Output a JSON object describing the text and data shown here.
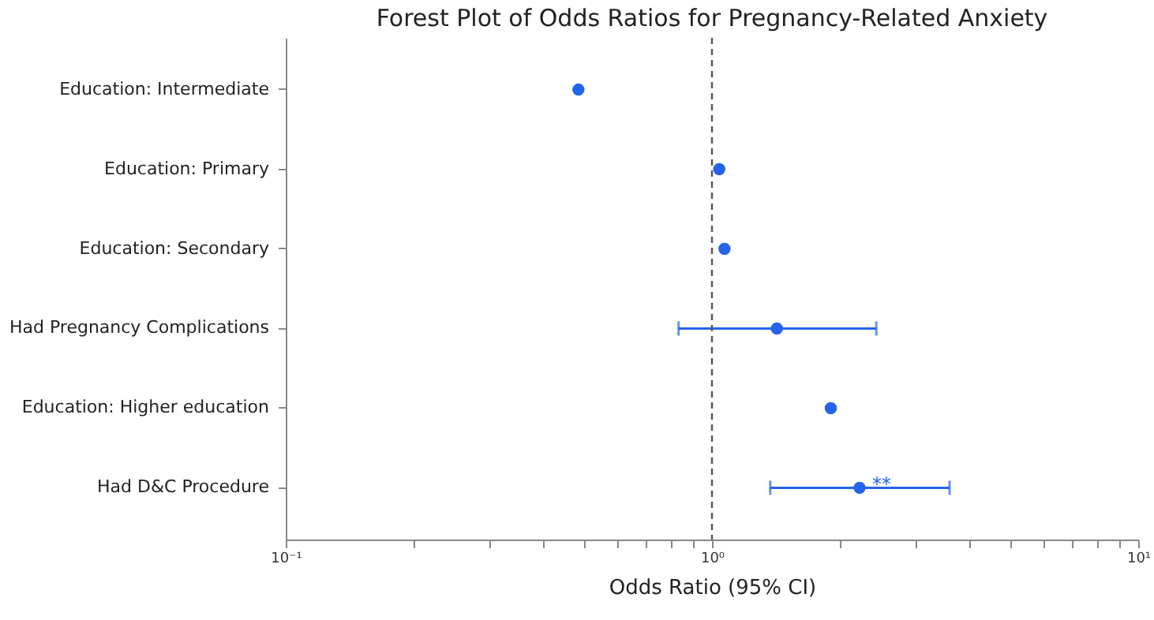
{
  "chart_data": {
    "type": "scatter",
    "orientation": "horizontal",
    "title": "Forest Plot of Odds Ratios for Pregnancy-Related Anxiety",
    "xlabel": "Odds Ratio (95% CI)",
    "categories": [
      "Education: Intermediate",
      "Education: Primary",
      "Education: Secondary",
      "Had Pregnancy Complications",
      "Education: Higher education",
      "Had D&C Procedure"
    ],
    "series": [
      {
        "color": "#2563eb",
        "values": [
          0.486,
          1.04,
          1.07,
          1.42,
          1.9,
          2.22
        ],
        "errors": [
          null,
          null,
          null,
          [
            0.835,
            2.43
          ],
          null,
          [
            1.37,
            3.61
          ]
        ]
      }
    ],
    "log": "x",
    "xlim": [
      0.1,
      10
    ],
    "xticks": [
      {
        "value": 0.1,
        "label": "10⁻¹"
      },
      {
        "value": 0.2,
        "label": null
      },
      {
        "value": 0.3,
        "label": null
      },
      {
        "value": 0.4,
        "label": null
      },
      {
        "value": 0.5,
        "label": null
      },
      {
        "value": 0.6,
        "label": null
      },
      {
        "value": 0.7,
        "label": null
      },
      {
        "value": 0.8,
        "label": null
      },
      {
        "value": 0.9,
        "label": null
      },
      {
        "value": 1,
        "label": "10⁰"
      },
      {
        "value": 2,
        "label": null
      },
      {
        "value": 3,
        "label": null
      },
      {
        "value": 4,
        "label": null
      },
      {
        "value": 5,
        "label": null
      },
      {
        "value": 6,
        "label": null
      },
      {
        "value": 7,
        "label": null
      },
      {
        "value": 8,
        "label": null
      },
      {
        "value": 9,
        "label": null
      },
      {
        "value": 10,
        "label": "10¹"
      }
    ],
    "ref_lines": [
      {
        "axis": "x",
        "value": 1,
        "color": "#555555",
        "line_style": "dashed"
      }
    ],
    "annotations": [
      {
        "text": "**",
        "x": 2.22,
        "y": "Had D&C Procedure"
      }
    ],
    "marker": "circle",
    "grid": false
  }
}
